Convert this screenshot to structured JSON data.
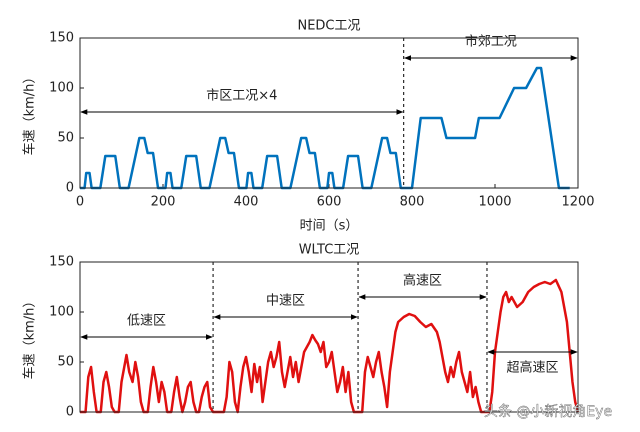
{
  "chart_data": [
    {
      "type": "line",
      "title": "NEDC工况",
      "xlabel": "时间（s）",
      "ylabel": "车速（km/h）",
      "x": [
        0,
        11,
        15,
        23,
        28,
        49,
        61,
        85,
        96,
        117,
        143,
        155,
        163,
        176,
        188,
        195,
        206,
        210,
        218,
        223,
        244,
        256,
        280,
        291,
        312,
        338,
        350,
        358,
        371,
        383,
        390,
        401,
        405,
        413,
        418,
        439,
        451,
        475,
        486,
        507,
        533,
        545,
        553,
        566,
        578,
        585,
        596,
        600,
        608,
        613,
        634,
        646,
        670,
        681,
        702,
        728,
        740,
        748,
        761,
        773,
        780,
        800,
        821,
        871,
        883,
        952,
        961,
        1011,
        1046,
        1075,
        1101,
        1111,
        1154,
        1180
      ],
      "series": [
        {
          "color": "#0072bd",
          "values": [
            0,
            0,
            15,
            15,
            0,
            0,
            32,
            32,
            0,
            0,
            50,
            50,
            35,
            35,
            0,
            0,
            0,
            15,
            15,
            0,
            0,
            32,
            32,
            0,
            0,
            50,
            50,
            35,
            35,
            0,
            0,
            0,
            15,
            15,
            0,
            0,
            32,
            32,
            0,
            0,
            50,
            50,
            35,
            35,
            0,
            0,
            0,
            15,
            15,
            0,
            0,
            32,
            32,
            0,
            0,
            50,
            50,
            35,
            35,
            0,
            0,
            0,
            70,
            70,
            50,
            50,
            70,
            70,
            100,
            100,
            120,
            120,
            0,
            0
          ]
        }
      ],
      "xlim": [
        0,
        1200
      ],
      "xticks": [
        0,
        200,
        400,
        600,
        800,
        1000,
        1200
      ],
      "ylim": [
        0,
        150
      ],
      "yticks": [
        0,
        50,
        100,
        150
      ],
      "regions": [
        {
          "label": "市区工况×4",
          "from": 0,
          "to": 780
        },
        {
          "label": "市郊工况",
          "from": 780,
          "to": 1200
        }
      ]
    },
    {
      "type": "line",
      "title": "WLTC工况",
      "ylabel": "车速（km/h）",
      "x": [
        0,
        20,
        30,
        40,
        50,
        60,
        75,
        85,
        95,
        105,
        115,
        125,
        140,
        150,
        160,
        168,
        178,
        190,
        200,
        210,
        220,
        230,
        245,
        255,
        265,
        275,
        285,
        295,
        305,
        315,
        330,
        340,
        350,
        360,
        370,
        380,
        390,
        400,
        410,
        420,
        430,
        440,
        450,
        460,
        470,
        481,
        500,
        520,
        530,
        540,
        550,
        560,
        570,
        580,
        590,
        600,
        610,
        620,
        630,
        640,
        650,
        660,
        670,
        680,
        690,
        700,
        710,
        720,
        730,
        740,
        750,
        760,
        770,
        780,
        790,
        800,
        810,
        820,
        830,
        840,
        850,
        860,
        870,
        880,
        890,
        900,
        910,
        920,
        930,
        940,
        950,
        960,
        970,
        980,
        990,
        1005,
        1010,
        1020,
        1030,
        1040,
        1050,
        1060,
        1070,
        1080,
        1090,
        1100,
        1110,
        1120,
        1130,
        1140,
        1150,
        1170,
        1190,
        1210,
        1230,
        1250,
        1270,
        1290,
        1300,
        1310,
        1320,
        1330,
        1340,
        1350,
        1360,
        1370,
        1380,
        1390,
        1400,
        1410,
        1420,
        1430,
        1440,
        1450,
        1471,
        1480,
        1490,
        1500,
        1510,
        1520,
        1530,
        1540,
        1550,
        1560,
        1580,
        1600,
        1620,
        1640,
        1660,
        1680,
        1700,
        1720,
        1740,
        1760,
        1770,
        1780,
        1790,
        1800
      ],
      "series": [
        {
          "color": "#e01010",
          "values": [
            0,
            0,
            35,
            45,
            20,
            0,
            0,
            30,
            40,
            25,
            5,
            0,
            0,
            30,
            45,
            57,
            40,
            30,
            50,
            35,
            10,
            0,
            0,
            25,
            45,
            30,
            10,
            30,
            20,
            0,
            0,
            20,
            35,
            15,
            0,
            10,
            25,
            30,
            10,
            0,
            0,
            15,
            25,
            30,
            5,
            0,
            0,
            0,
            15,
            50,
            40,
            10,
            0,
            25,
            45,
            55,
            40,
            20,
            48,
            30,
            45,
            10,
            30,
            50,
            60,
            45,
            55,
            70,
            40,
            25,
            40,
            55,
            35,
            50,
            30,
            45,
            60,
            65,
            70,
            77,
            72,
            68,
            60,
            70,
            45,
            50,
            60,
            40,
            20,
            30,
            45,
            20,
            40,
            10,
            0,
            0,
            0,
            0,
            40,
            55,
            45,
            35,
            50,
            60,
            40,
            25,
            5,
            40,
            60,
            80,
            90,
            95,
            98,
            96,
            90,
            85,
            88,
            80,
            70,
            55,
            40,
            30,
            45,
            35,
            50,
            60,
            40,
            30,
            20,
            40,
            15,
            25,
            10,
            0,
            0,
            0,
            20,
            60,
            80,
            100,
            115,
            120,
            110,
            115,
            105,
            110,
            120,
            125,
            128,
            130,
            128,
            132,
            120,
            90,
            60,
            30,
            10,
            0
          ]
        }
      ],
      "xlim": [
        0,
        1800
      ],
      "ylim": [
        0,
        150
      ],
      "yticks": [
        0,
        50,
        100,
        150
      ],
      "regions": [
        {
          "label": "低速区",
          "from": 0,
          "to": 481
        },
        {
          "label": "中速区",
          "from": 481,
          "to": 1005
        },
        {
          "label": "高速区",
          "from": 1005,
          "to": 1471
        },
        {
          "label": "超高速区",
          "from": 1471,
          "to": 1800
        }
      ]
    }
  ],
  "watermark": "头条 @小新视角Eye"
}
